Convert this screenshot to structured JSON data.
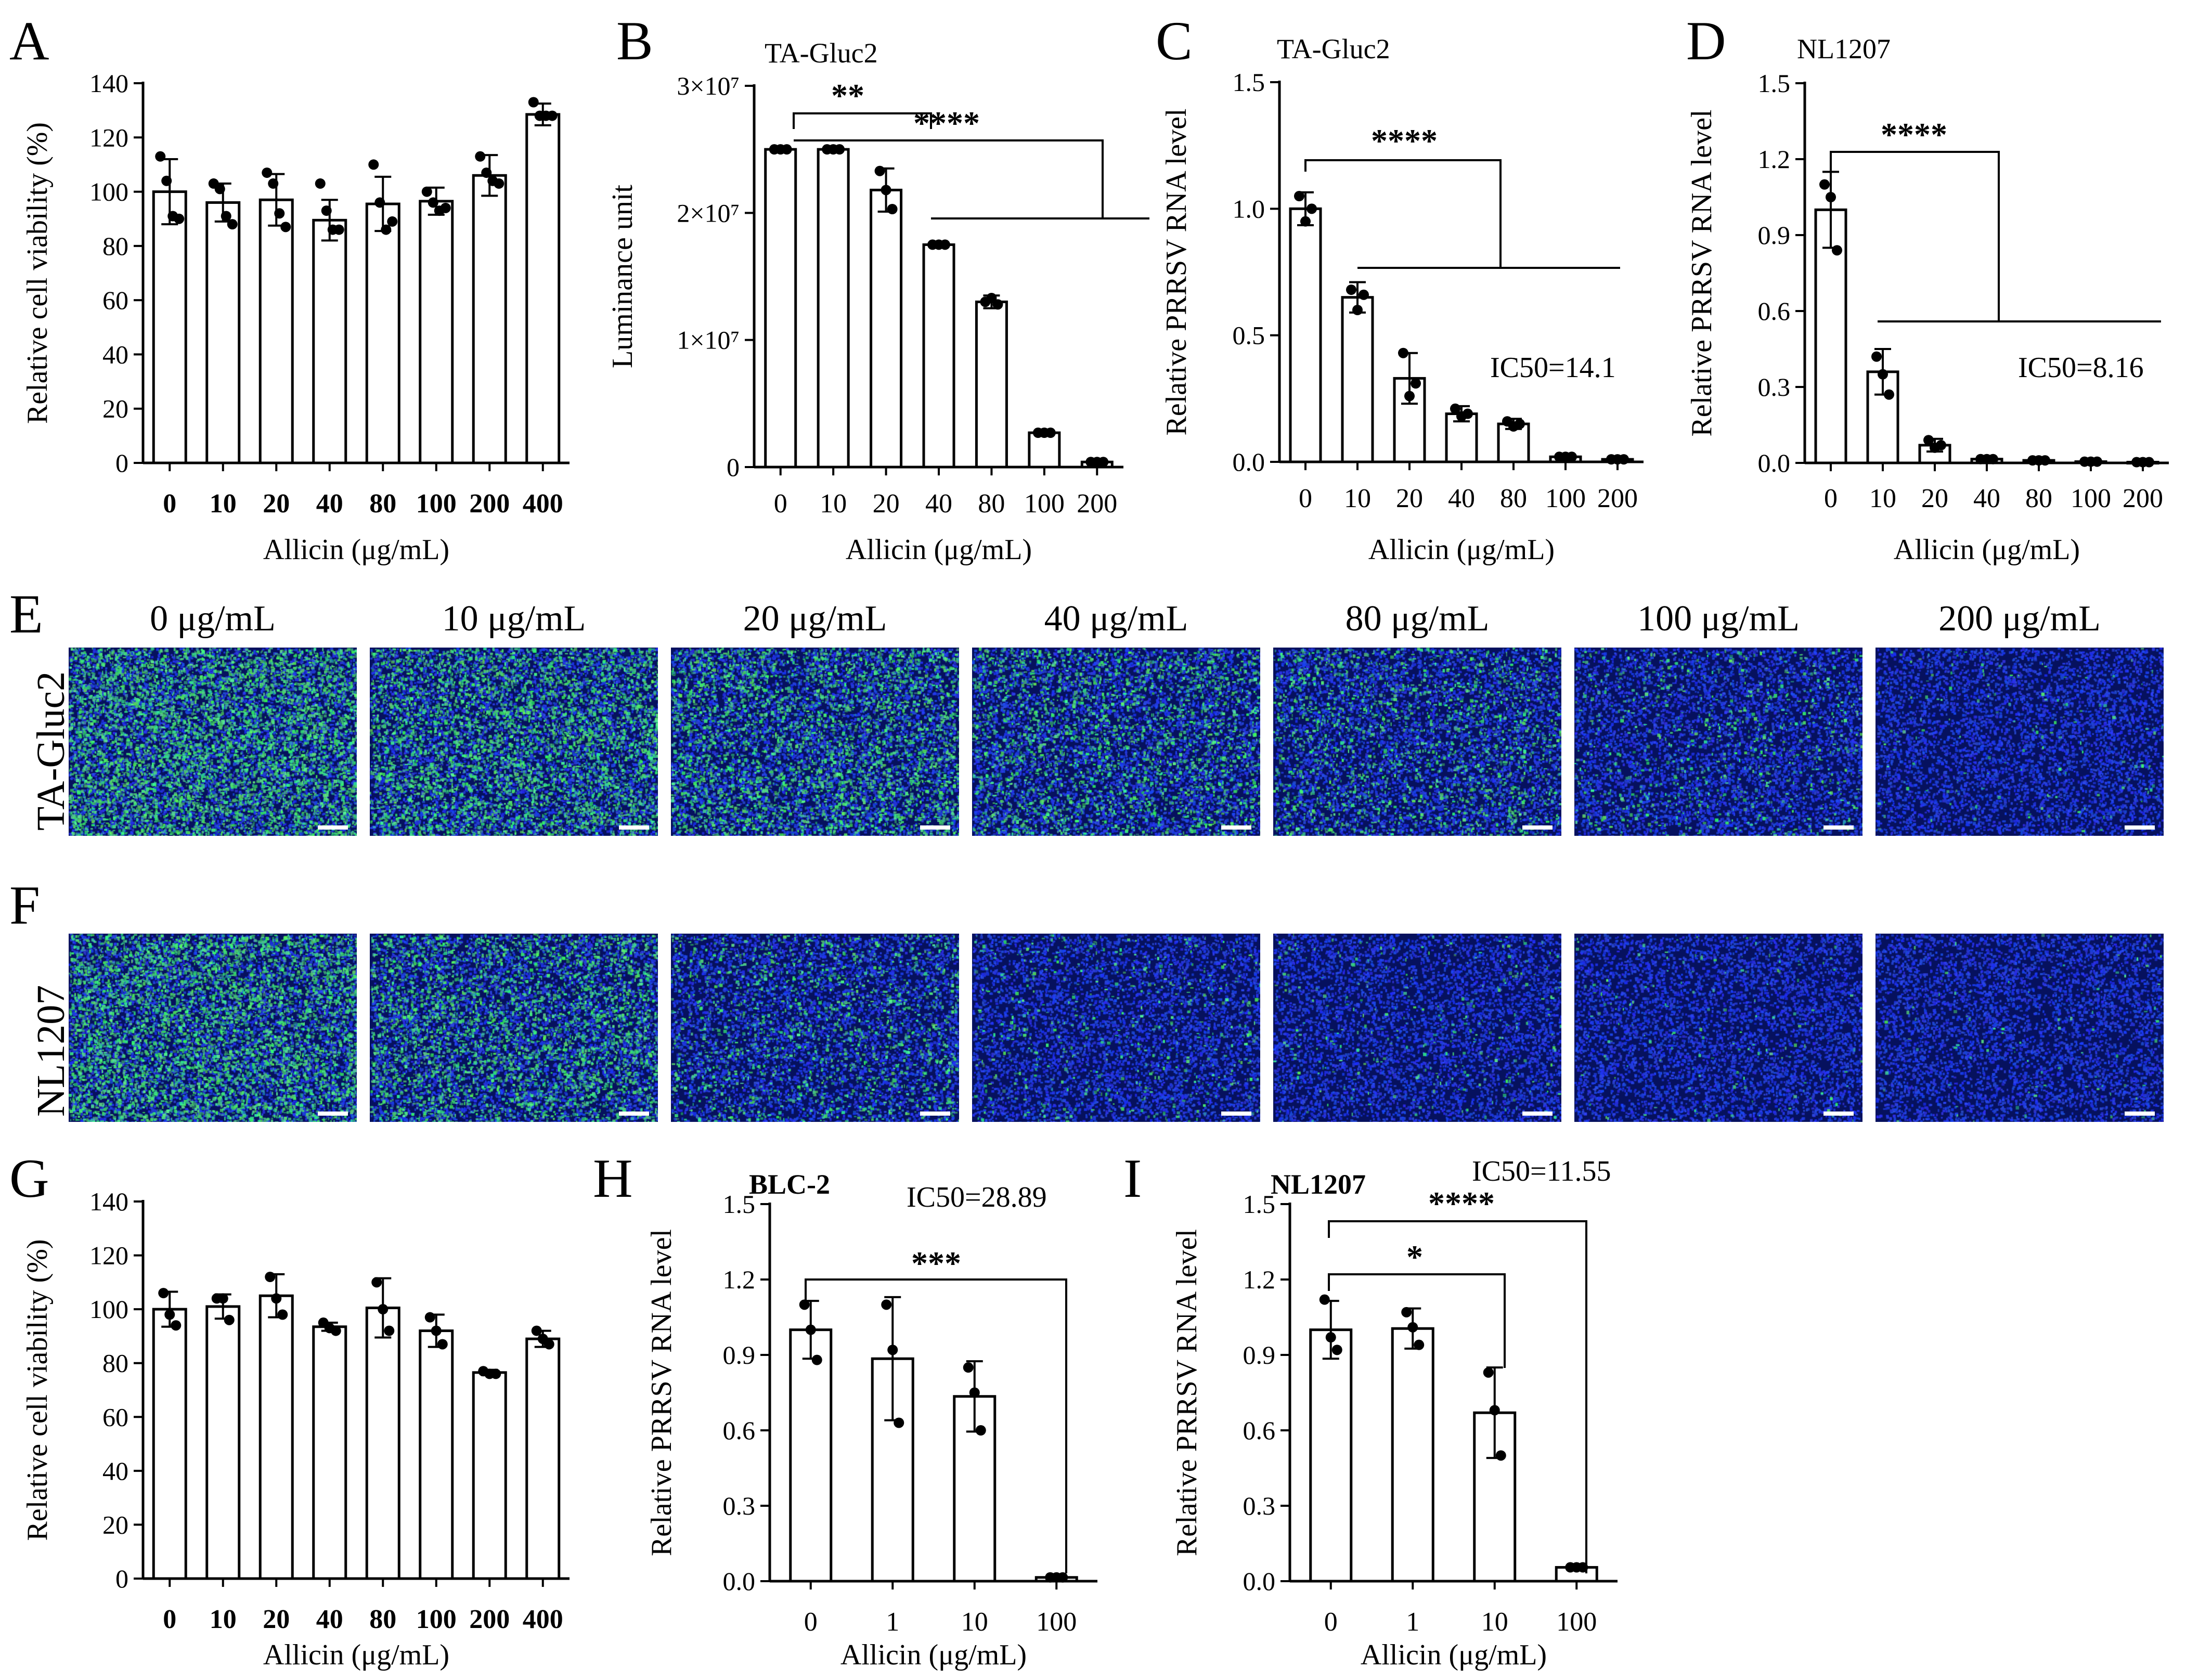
{
  "panel_letters": [
    "A",
    "B",
    "C",
    "D",
    "E",
    "F",
    "G",
    "H",
    "I"
  ],
  "colors": {
    "axis": "#000000",
    "bar_fill": "#ffffff",
    "blue_nuclei": "#1433e8",
    "green_virus": "#37d84e"
  },
  "chart_data": [
    {
      "panel": "A",
      "type": "bar",
      "title": "",
      "xlabel": "Allicin (μg/mL)",
      "ylabel": "Relative cell viability (%)",
      "categories": [
        "0",
        "10",
        "20",
        "40",
        "80",
        "100",
        "200",
        "400"
      ],
      "values": [
        100,
        96,
        97,
        89.5,
        95.5,
        96.5,
        106,
        128.5
      ],
      "errors": [
        12,
        7,
        9.5,
        7.5,
        10,
        5,
        7.5,
        4
      ],
      "points": [
        [
          113,
          104,
          91,
          90
        ],
        [
          103,
          101,
          91,
          88
        ],
        [
          107,
          103,
          92,
          87
        ],
        [
          103,
          93,
          86,
          86
        ],
        [
          110,
          96,
          86,
          89
        ],
        [
          100,
          96,
          93,
          94
        ],
        [
          113,
          107,
          104,
          103
        ],
        [
          133,
          128,
          128,
          128
        ]
      ],
      "ylim": [
        0,
        140
      ],
      "yticks": [
        "0",
        "20",
        "40",
        "60",
        "80",
        "100",
        "120",
        "140"
      ],
      "bold_ticks": true
    },
    {
      "panel": "B",
      "type": "bar",
      "title": "TA-Gluc2",
      "xlabel": "Allicin (μg/mL)",
      "ylabel": "Luminance unit",
      "categories": [
        "0",
        "10",
        "20",
        "40",
        "80",
        "100",
        "200"
      ],
      "values": [
        25000000,
        25000000,
        21800000,
        17500000,
        13000000,
        2700000,
        400000
      ],
      "errors": [
        150000,
        150000,
        1700000,
        150000,
        500000,
        120000,
        80000
      ],
      "points": [
        [
          25000000,
          25000000,
          25000000
        ],
        [
          25000000,
          25000000,
          25000000
        ],
        [
          23300000,
          21800000,
          20300000
        ],
        [
          17500000,
          17500000,
          17500000
        ],
        [
          13000000,
          13300000,
          12800000
        ],
        [
          2700000,
          2700000,
          2700000
        ],
        [
          400000,
          400000,
          400000
        ]
      ],
      "ylim": [
        0,
        30000000
      ],
      "yticks": [
        "0",
        "1×10⁷",
        "2×10⁷",
        "3×10⁷"
      ],
      "annotations": [
        "**",
        "****"
      ]
    },
    {
      "panel": "C",
      "type": "bar",
      "title": "TA-Gluc2",
      "xlabel": "Allicin (μg/mL)",
      "ylabel": "Relative PRRSV RNA level",
      "categories": [
        "0",
        "10",
        "20",
        "40",
        "80",
        "100",
        "200"
      ],
      "values": [
        1.0,
        0.65,
        0.33,
        0.19,
        0.15,
        0.02,
        0.01
      ],
      "errors": [
        0.065,
        0.06,
        0.1,
        0.03,
        0.02,
        0.005,
        0.005
      ],
      "points": [
        [
          1.05,
          0.95,
          1.0
        ],
        [
          0.68,
          0.6,
          0.66
        ],
        [
          0.43,
          0.26,
          0.31
        ],
        [
          0.21,
          0.18,
          0.19
        ],
        [
          0.16,
          0.14,
          0.15
        ],
        [
          0.02,
          0.02,
          0.02
        ],
        [
          0.01,
          0.01,
          0.01
        ]
      ],
      "ylim": [
        0,
        1.5
      ],
      "yticks": [
        "0.0",
        "0.5",
        "1.0",
        "1.5"
      ],
      "annotations": [
        "****",
        "IC50=14.1"
      ]
    },
    {
      "panel": "D",
      "type": "bar",
      "title": "NL1207",
      "xlabel": "Allicin (μg/mL)",
      "ylabel": "Relative PRRSV RNA level",
      "categories": [
        "0",
        "10",
        "20",
        "40",
        "80",
        "100",
        "200"
      ],
      "values": [
        1.0,
        0.36,
        0.07,
        0.015,
        0.01,
        0.005,
        0.003
      ],
      "errors": [
        0.15,
        0.09,
        0.025,
        0.004,
        0.003,
        0.002,
        0.001
      ],
      "points": [
        [
          1.1,
          1.05,
          0.84
        ],
        [
          0.42,
          0.35,
          0.27
        ],
        [
          0.09,
          0.06,
          0.07
        ],
        [
          0.015,
          0.015,
          0.015
        ],
        [
          0.01,
          0.01,
          0.01
        ],
        [
          0.005,
          0.005,
          0.005
        ],
        [
          0.003,
          0.003,
          0.003
        ]
      ],
      "ylim": [
        0,
        1.5
      ],
      "yticks": [
        "0.0",
        "0.3",
        "0.6",
        "0.9",
        "1.2",
        "1.5"
      ],
      "annotations": [
        "****",
        "IC50=8.16"
      ]
    },
    {
      "panel": "G",
      "type": "bar",
      "title": "",
      "xlabel": "Allicin (μg/mL)",
      "ylabel": "Relative cell viability (%)",
      "categories": [
        "0",
        "10",
        "20",
        "40",
        "80",
        "100",
        "200",
        "400"
      ],
      "values": [
        100,
        101,
        105,
        93.5,
        100.5,
        92,
        76.5,
        89
      ],
      "errors": [
        6.5,
        4.5,
        8,
        1.5,
        11,
        6,
        1,
        3
      ],
      "points": [
        [
          106,
          98,
          94
        ],
        [
          104,
          104,
          96
        ],
        [
          112,
          104,
          98
        ],
        [
          95,
          93,
          92
        ],
        [
          110,
          100,
          92
        ],
        [
          97,
          92,
          87
        ],
        [
          77,
          76,
          76
        ],
        [
          92,
          89,
          87
        ]
      ],
      "ylim": [
        0,
        140
      ],
      "yticks": [
        "0",
        "20",
        "40",
        "60",
        "80",
        "100",
        "120",
        "140"
      ],
      "bold_ticks": true
    },
    {
      "panel": "H",
      "type": "bar",
      "title": "BLC-2",
      "xlabel": "Allicin (μg/mL)",
      "ylabel": "Relative PRRSV RNA level",
      "categories": [
        "0",
        "1",
        "10",
        "100"
      ],
      "values": [
        1.0,
        0.885,
        0.735,
        0.015
      ],
      "errors": [
        0.115,
        0.245,
        0.14,
        0.005
      ],
      "points": [
        [
          1.1,
          1.0,
          0.88
        ],
        [
          1.1,
          0.92,
          0.63
        ],
        [
          0.85,
          0.75,
          0.6
        ],
        [
          0.015,
          0.015,
          0.015
        ]
      ],
      "ylim": [
        0,
        1.5
      ],
      "yticks": [
        "0.0",
        "0.3",
        "0.6",
        "0.9",
        "1.2",
        "1.5"
      ],
      "annotations": [
        "***",
        "IC50=28.89"
      ]
    },
    {
      "panel": "I",
      "type": "bar",
      "title": "NL1207",
      "xlabel": "Allicin (μg/mL)",
      "ylabel": "Relative PRRSV RNA level",
      "categories": [
        "0",
        "1",
        "10",
        "100"
      ],
      "values": [
        1.0,
        1.005,
        0.67,
        0.055
      ],
      "errors": [
        0.115,
        0.08,
        0.18,
        0.005
      ],
      "points": [
        [
          1.12,
          0.97,
          0.92
        ],
        [
          1.07,
          1.01,
          0.94
        ],
        [
          0.83,
          0.68,
          0.5
        ],
        [
          0.055,
          0.055,
          0.055
        ]
      ],
      "ylim": [
        0,
        1.5
      ],
      "yticks": [
        "0.0",
        "0.3",
        "0.6",
        "0.9",
        "1.2",
        "1.5"
      ],
      "annotations": [
        "*",
        "****",
        "IC50=11.55"
      ]
    }
  ],
  "micrographs": {
    "concentrations": [
      "0 μg/mL",
      "10 μg/mL",
      "20 μg/mL",
      "40 μg/mL",
      "80 μg/mL",
      "100 μg/mL",
      "200 μg/mL"
    ],
    "rows": [
      {
        "label": "TA-Gluc2",
        "green_level": [
          0.85,
          0.7,
          0.55,
          0.4,
          0.28,
          0.12,
          0.02
        ]
      },
      {
        "label": "NL1207",
        "green_level": [
          0.8,
          0.55,
          0.25,
          0.08,
          0.04,
          0.02,
          0.01
        ]
      }
    ]
  }
}
